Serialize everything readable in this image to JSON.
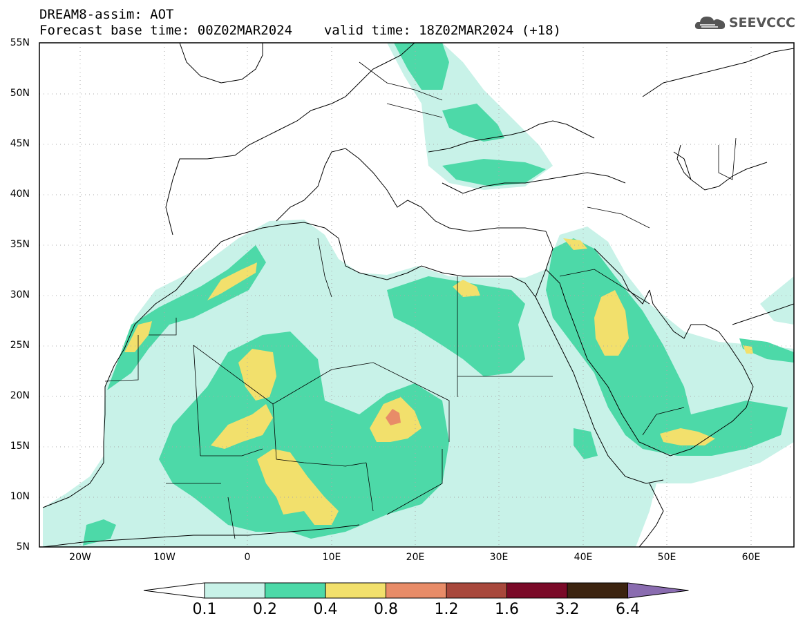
{
  "header": {
    "line1": "DREAM8-assim: AOT",
    "base_time": "Forecast base time: 00Z02MAR2024",
    "valid_time": "valid time: 18Z02MAR2024 (+18)"
  },
  "logo": {
    "text": "SEEVCCC",
    "icon": "cloud-icon"
  },
  "axes": {
    "lat_labels": [
      "55N",
      "50N",
      "45N",
      "40N",
      "35N",
      "30N",
      "25N",
      "20N",
      "15N",
      "10N",
      "5N"
    ],
    "lon_labels": [
      "20W",
      "10W",
      "0",
      "10E",
      "20E",
      "30E",
      "40E",
      "50E",
      "60E"
    ]
  },
  "colorbar": {
    "labels": [
      "0.1",
      "0.2",
      "0.4",
      "0.8",
      "1.2",
      "1.6",
      "3.2",
      "6.4"
    ],
    "colors": [
      "#c8f2e8",
      "#4dd9a8",
      "#f2e06c",
      "#e88c68",
      "#a8483c",
      "#7a0a28",
      "#3c2410",
      "#8a6cb0"
    ]
  }
}
